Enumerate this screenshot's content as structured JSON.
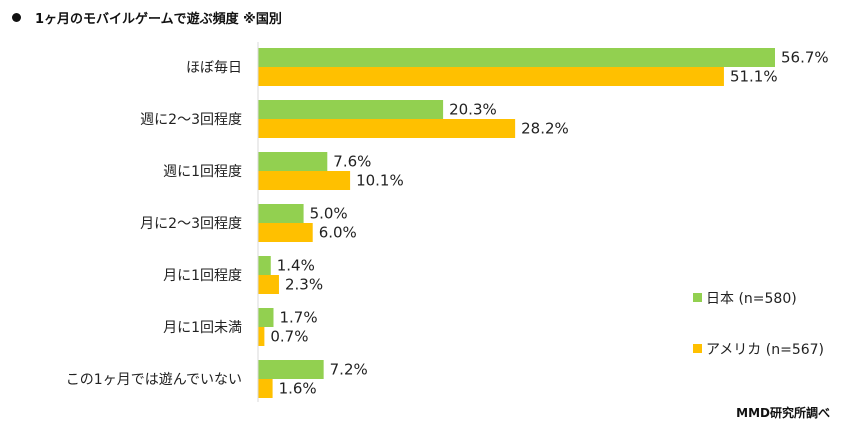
{
  "chart_data": {
    "type": "bar",
    "orientation": "horizontal",
    "title": "1ヶ月のモバイルゲームで遊ぶ頻度 ※国別",
    "categories": [
      "ほぼ毎日",
      "週に2～3回程度",
      "週に1回程度",
      "月に2～3回程度",
      "月に1回程度",
      "月に1回未満",
      "この1ヶ月では遊んでいない"
    ],
    "series": [
      {
        "name": "日本 (n=580)",
        "color": "#92d050",
        "values": [
          56.7,
          20.3,
          7.6,
          5.0,
          1.4,
          1.7,
          7.2
        ]
      },
      {
        "name": "アメリカ (n=567)",
        "color": "#ffc000",
        "values": [
          51.1,
          28.2,
          10.1,
          6.0,
          2.3,
          0.7,
          1.6
        ]
      }
    ],
    "value_suffix": "%",
    "xlim": [
      0,
      60
    ],
    "grid": false,
    "legend_position": "right"
  },
  "source": "MMD研究所調べ"
}
